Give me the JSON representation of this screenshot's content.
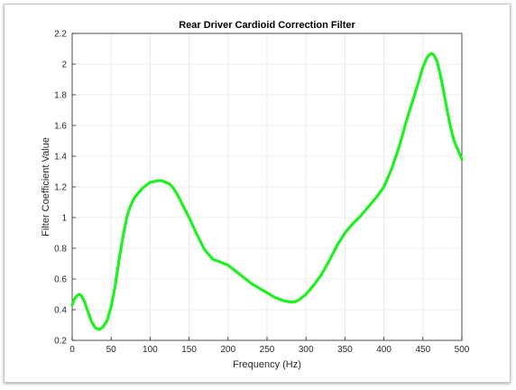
{
  "chart_data": {
    "type": "line",
    "title": "Rear Driver Cardioid Correction Filter",
    "xlabel": "Frequency (Hz)",
    "ylabel": "Filter Coefficient Value",
    "xlim": [
      0,
      500
    ],
    "ylim": [
      0.2,
      2.2
    ],
    "x_ticks": [
      0,
      50,
      100,
      150,
      200,
      250,
      300,
      350,
      400,
      450,
      500
    ],
    "y_ticks": [
      0.2,
      0.4,
      0.6,
      0.8,
      1,
      1.2,
      1.4,
      1.6,
      1.8,
      2,
      2.2
    ],
    "grid": true,
    "line_color": "#1ff01f",
    "series": [
      {
        "x": [
          0,
          3,
          6,
          9,
          12,
          16,
          20,
          25,
          30,
          35,
          40,
          45,
          50,
          55,
          60,
          65,
          70,
          73,
          76,
          80,
          85,
          90,
          95,
          100,
          105,
          110,
          115,
          120,
          125,
          130,
          135,
          140,
          150,
          160,
          170,
          180,
          190,
          200,
          210,
          220,
          230,
          240,
          250,
          260,
          270,
          280,
          285,
          290,
          300,
          310,
          320,
          330,
          340,
          350,
          360,
          370,
          380,
          390,
          400,
          410,
          420,
          430,
          440,
          450,
          455,
          458,
          461,
          464,
          468,
          472,
          476,
          480,
          485,
          490,
          495,
          500
        ],
        "y": [
          0.43,
          0.47,
          0.49,
          0.5,
          0.49,
          0.45,
          0.39,
          0.32,
          0.28,
          0.27,
          0.29,
          0.33,
          0.42,
          0.55,
          0.72,
          0.87,
          1.0,
          1.05,
          1.09,
          1.13,
          1.16,
          1.19,
          1.21,
          1.23,
          1.235,
          1.24,
          1.24,
          1.23,
          1.22,
          1.19,
          1.15,
          1.1,
          1.0,
          0.89,
          0.79,
          0.73,
          0.71,
          0.69,
          0.65,
          0.61,
          0.57,
          0.54,
          0.51,
          0.48,
          0.46,
          0.45,
          0.45,
          0.46,
          0.5,
          0.56,
          0.63,
          0.72,
          0.82,
          0.9,
          0.96,
          1.01,
          1.07,
          1.13,
          1.2,
          1.32,
          1.47,
          1.65,
          1.81,
          1.98,
          2.04,
          2.06,
          2.07,
          2.06,
          2.02,
          1.94,
          1.84,
          1.73,
          1.6,
          1.5,
          1.44,
          1.38
        ]
      }
    ]
  }
}
